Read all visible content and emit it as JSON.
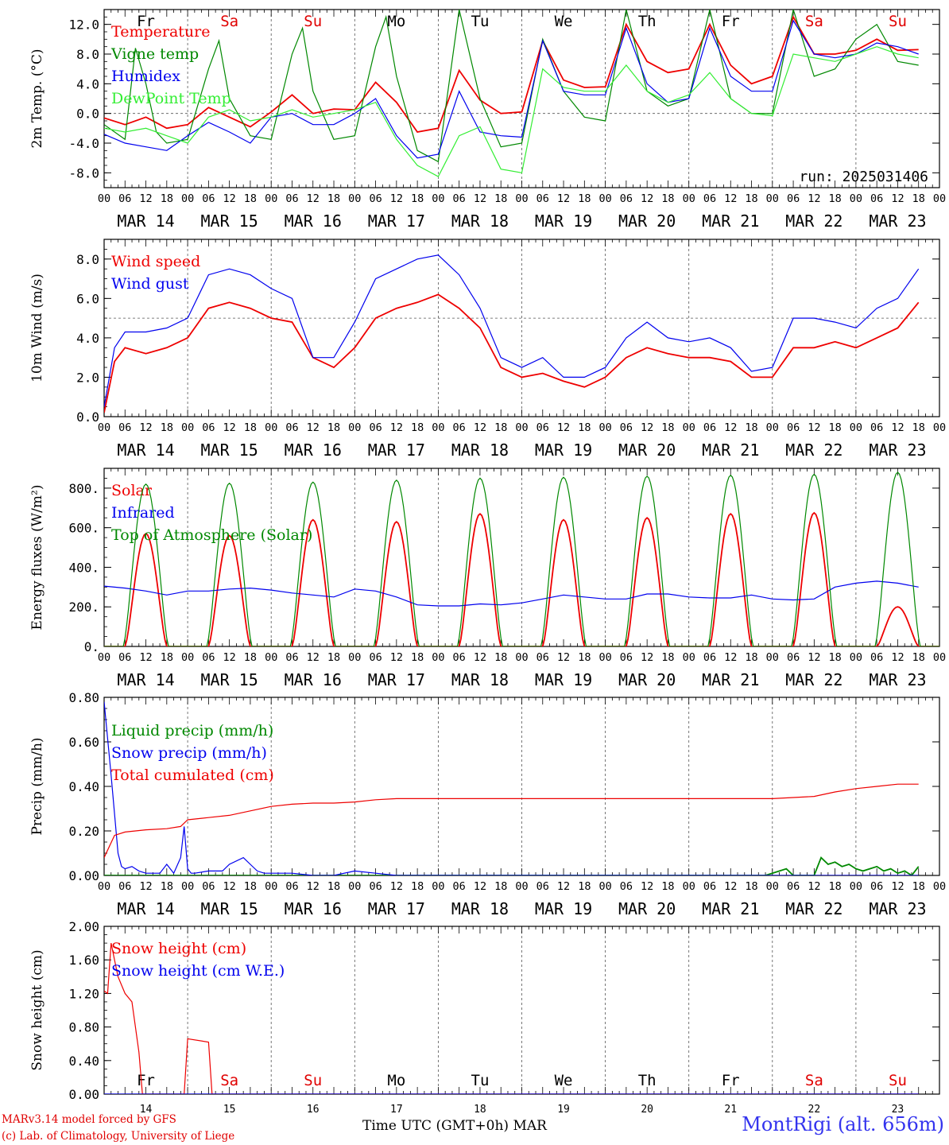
{
  "run_label": "run: 2025031406",
  "station": "MontRigi (alt. 656m)",
  "model_credit": "MARv3.14 model forced by GFS",
  "lab_credit": "(c) Lab. of Climatology, University of Liege",
  "x_axis_label": "Time UTC (GMT+0h) MAR",
  "hour_ticks": [
    "00",
    "06",
    "12",
    "18"
  ],
  "dates": [
    "MAR 14",
    "MAR 15",
    "MAR 16",
    "MAR 17",
    "MAR 18",
    "MAR 19",
    "MAR 20",
    "MAR 21",
    "MAR 22",
    "MAR 23"
  ],
  "date_numbers": [
    "14",
    "15",
    "16",
    "17",
    "18",
    "19",
    "20",
    "21",
    "22",
    "23"
  ],
  "weekdays": [
    "Fr",
    "Sa",
    "Su",
    "Mo",
    "Tu",
    "We",
    "Th",
    "Fr",
    "Sa",
    "Su"
  ],
  "weekday_colors": [
    "#000000",
    "#e00000",
    "#e00000",
    "#000000",
    "#000000",
    "#000000",
    "#000000",
    "#000000",
    "#e00000",
    "#e00000"
  ],
  "colors": {
    "red": "#ee0000",
    "green": "#008800",
    "blue": "#0000ee",
    "lightgreen": "#33ee33",
    "grid": "#555555"
  },
  "chart_data": [
    {
      "type": "line",
      "ylabel": "2m Temp. (°C)",
      "ylim": [
        -10,
        14
      ],
      "yticks": [
        -8,
        -4,
        0,
        4,
        8,
        12
      ],
      "ytick_labels": [
        "-8.0",
        "-4.0",
        "0.0",
        "4.0",
        "8.0",
        "12.0"
      ],
      "x_unit": "hours since 00 UTC MAR 14",
      "series": [
        {
          "name": "Temperature",
          "color": "red",
          "x": [
            0,
            6,
            12,
            18,
            24,
            30,
            36,
            42,
            48,
            54,
            60,
            66,
            72,
            78,
            84,
            90,
            96,
            102,
            108,
            114,
            120,
            126,
            132,
            138,
            144,
            150,
            156,
            162,
            168,
            174,
            180,
            186,
            192,
            198,
            204,
            210,
            216,
            222,
            228,
            234
          ],
          "values": [
            -0.6,
            -1.5,
            -0.5,
            -2.0,
            -1.5,
            0.8,
            -0.5,
            -1.8,
            0.2,
            2.5,
            0.0,
            0.6,
            0.5,
            4.2,
            1.5,
            -2.5,
            -2.0,
            5.8,
            1.8,
            0.0,
            0.2,
            9.8,
            4.5,
            3.5,
            3.6,
            12.0,
            7.0,
            5.5,
            6.0,
            12.0,
            6.5,
            4.0,
            5.0,
            13.0,
            8.0,
            8.0,
            8.5,
            10.0,
            8.5,
            8.6
          ]
        },
        {
          "name": "Vigne temp",
          "color": "green",
          "x": [
            0,
            6,
            9,
            12,
            15,
            18,
            24,
            30,
            33,
            36,
            42,
            48,
            54,
            57,
            60,
            66,
            72,
            78,
            81,
            84,
            90,
            96,
            102,
            108,
            114,
            120,
            126,
            132,
            138,
            144,
            150,
            156,
            162,
            168,
            174,
            180,
            186,
            192,
            198,
            204,
            210,
            216,
            222,
            228,
            234
          ],
          "values": [
            -1.5,
            -3.5,
            8.8,
            4.0,
            -2.5,
            -4.0,
            -3.5,
            6.0,
            9.8,
            2.0,
            -3.0,
            -3.5,
            8.0,
            11.5,
            3.0,
            -3.5,
            -3.0,
            9.0,
            13.0,
            5.0,
            -5.0,
            -6.5,
            14.0,
            2.0,
            -4.5,
            -4.0,
            10.0,
            3.0,
            -0.5,
            -1.0,
            14.0,
            3.0,
            1.0,
            2.0,
            14.0,
            2.0,
            0.0,
            0.0,
            14.0,
            5.0,
            6.0,
            10.0,
            12.0,
            7.0,
            6.5
          ]
        },
        {
          "name": "Humidex",
          "color": "blue",
          "x": [
            0,
            6,
            12,
            18,
            24,
            30,
            36,
            42,
            48,
            54,
            60,
            66,
            72,
            78,
            84,
            90,
            96,
            102,
            108,
            114,
            120,
            126,
            132,
            138,
            144,
            150,
            156,
            162,
            168,
            174,
            180,
            186,
            192,
            198,
            204,
            210,
            216,
            222,
            228,
            234
          ],
          "values": [
            -2.8,
            -4.0,
            -4.5,
            -5.0,
            -3.0,
            -1.2,
            -2.5,
            -4.0,
            -0.5,
            0.0,
            -1.5,
            -1.5,
            0.0,
            2.0,
            -3.0,
            -6.0,
            -5.5,
            3.0,
            -2.5,
            -3.0,
            -3.2,
            9.8,
            3.0,
            2.5,
            2.5,
            11.5,
            4.0,
            1.5,
            2.0,
            11.5,
            5.0,
            3.0,
            3.0,
            12.5,
            8.0,
            7.5,
            8.0,
            9.5,
            9.0,
            8.0
          ]
        },
        {
          "name": "DewPoint Temp",
          "color": "lightgreen",
          "x": [
            0,
            6,
            12,
            18,
            24,
            30,
            36,
            42,
            48,
            54,
            60,
            66,
            72,
            78,
            84,
            90,
            96,
            102,
            108,
            114,
            120,
            126,
            132,
            138,
            144,
            150,
            156,
            162,
            168,
            174,
            180,
            186,
            192,
            198,
            204,
            210,
            216,
            222,
            228,
            234
          ],
          "values": [
            -2.0,
            -2.5,
            -2.0,
            -3.0,
            -4.0,
            -0.5,
            0.5,
            -1.0,
            -0.5,
            0.5,
            -0.5,
            0.0,
            0.5,
            1.5,
            -3.5,
            -7.0,
            -8.5,
            -3.0,
            -1.8,
            -7.5,
            -8.0,
            6.0,
            3.5,
            3.0,
            3.0,
            6.5,
            3.0,
            1.5,
            2.5,
            5.5,
            2.0,
            0.0,
            -0.3,
            8.0,
            7.5,
            7.0,
            8.0,
            9.0,
            8.0,
            7.5
          ]
        }
      ],
      "hline": 0,
      "legend_position": "left"
    },
    {
      "type": "line",
      "ylabel": "10m Wind (m/s)",
      "ylim": [
        0,
        9
      ],
      "yticks": [
        0,
        2,
        4,
        6,
        8
      ],
      "ytick_labels": [
        "0.0",
        "2.0",
        "4.0",
        "6.0",
        "8.0"
      ],
      "series": [
        {
          "name": "Wind speed",
          "color": "red",
          "x": [
            0,
            3,
            6,
            12,
            18,
            24,
            30,
            36,
            42,
            48,
            54,
            60,
            66,
            72,
            78,
            84,
            90,
            96,
            102,
            108,
            114,
            120,
            126,
            132,
            138,
            144,
            150,
            156,
            162,
            168,
            174,
            180,
            186,
            192,
            198,
            204,
            210,
            216,
            222,
            228,
            234
          ],
          "values": [
            0.2,
            2.8,
            3.5,
            3.2,
            3.5,
            4.0,
            5.5,
            5.8,
            5.5,
            5.0,
            4.8,
            3.0,
            2.5,
            3.5,
            5.0,
            5.5,
            5.8,
            6.2,
            5.5,
            4.5,
            2.5,
            2.0,
            2.2,
            1.8,
            1.5,
            2.0,
            3.0,
            3.5,
            3.2,
            3.0,
            3.0,
            2.8,
            2.0,
            2.0,
            3.5,
            3.5,
            3.8,
            3.5,
            4.0,
            4.5,
            5.8
          ]
        },
        {
          "name": "Wind gust",
          "color": "blue",
          "x": [
            0,
            3,
            6,
            12,
            18,
            24,
            30,
            36,
            42,
            48,
            54,
            60,
            66,
            72,
            78,
            84,
            90,
            96,
            102,
            108,
            114,
            120,
            126,
            132,
            138,
            144,
            150,
            156,
            162,
            168,
            174,
            180,
            186,
            192,
            198,
            204,
            210,
            216,
            222,
            228,
            234
          ],
          "values": [
            0.5,
            3.5,
            4.3,
            4.3,
            4.5,
            5.0,
            7.2,
            7.5,
            7.2,
            6.5,
            6.0,
            3.0,
            3.0,
            4.8,
            7.0,
            7.5,
            8.0,
            8.2,
            7.2,
            5.5,
            3.0,
            2.5,
            3.0,
            2.0,
            2.0,
            2.5,
            4.0,
            4.8,
            4.0,
            3.8,
            4.0,
            3.5,
            2.3,
            2.5,
            5.0,
            5.0,
            4.8,
            4.5,
            5.5,
            6.0,
            7.5
          ]
        }
      ],
      "hline": 5,
      "legend_position": "left"
    },
    {
      "type": "line",
      "ylabel": "Energy fluxes (W/m²)",
      "ylim": [
        0,
        900
      ],
      "yticks": [
        0,
        200,
        400,
        600,
        800
      ],
      "ytick_labels": [
        "0.",
        "200.",
        "400.",
        "600.",
        "800."
      ],
      "series": [
        {
          "name": "Solar",
          "color": "red",
          "peaks": [
            570,
            560,
            640,
            630,
            670,
            640,
            650,
            670,
            675,
            200
          ],
          "peak_hour": 12,
          "day_start": 6,
          "day_end": 18
        },
        {
          "name": "Infrared",
          "color": "blue",
          "x": [
            0,
            6,
            12,
            18,
            24,
            30,
            36,
            42,
            48,
            54,
            60,
            66,
            72,
            78,
            84,
            90,
            96,
            102,
            108,
            114,
            120,
            126,
            132,
            138,
            144,
            150,
            156,
            162,
            168,
            174,
            180,
            186,
            192,
            198,
            204,
            210,
            216,
            222,
            228,
            234
          ],
          "values": [
            305,
            295,
            280,
            260,
            280,
            280,
            290,
            295,
            285,
            270,
            260,
            250,
            290,
            280,
            250,
            210,
            205,
            205,
            215,
            210,
            220,
            240,
            260,
            250,
            240,
            240,
            265,
            265,
            250,
            245,
            245,
            260,
            240,
            235,
            240,
            300,
            320,
            330,
            320,
            300
          ]
        },
        {
          "name": "Top of Atmosphere (Solar)",
          "color": "green",
          "peaks": [
            820,
            825,
            830,
            840,
            850,
            855,
            860,
            865,
            870,
            880
          ],
          "peak_hour": 12,
          "day_start": 5.5,
          "day_end": 18.5
        }
      ],
      "legend_position": "left"
    },
    {
      "type": "line",
      "ylabel": "Precip (mm/h)",
      "ylim": [
        0,
        0.8
      ],
      "yticks": [
        0,
        0.2,
        0.4,
        0.6,
        0.8
      ],
      "ytick_labels": [
        "0.00",
        "0.20",
        "0.40",
        "0.60",
        "0.80"
      ],
      "series": [
        {
          "name": "Liquid precip (mm/h)",
          "color": "green",
          "x": [
            0,
            190,
            196,
            198,
            200,
            202,
            204,
            206,
            208,
            210,
            212,
            214,
            216,
            218,
            220,
            222,
            224,
            226,
            228,
            230,
            232,
            234
          ],
          "values": [
            0,
            0,
            0.03,
            0,
            0,
            0,
            0,
            0.08,
            0.05,
            0.06,
            0.04,
            0.05,
            0.03,
            0.02,
            0.03,
            0.04,
            0.02,
            0.03,
            0.01,
            0.02,
            0,
            0.04
          ]
        },
        {
          "name": "Snow precip (mm/h)",
          "color": "blue",
          "x": [
            0,
            2,
            4,
            5,
            6,
            8,
            10,
            12,
            14,
            16,
            18,
            20,
            22,
            23,
            24,
            25,
            26,
            30,
            34,
            36,
            40,
            42,
            44,
            46,
            48,
            54,
            60,
            66,
            72,
            78,
            84,
            234
          ],
          "values": [
            0.78,
            0.45,
            0.1,
            0.04,
            0.03,
            0.04,
            0.02,
            0.01,
            0.01,
            0.01,
            0.05,
            0.01,
            0.08,
            0.22,
            0.03,
            0.01,
            0.01,
            0.02,
            0.02,
            0.05,
            0.08,
            0.05,
            0.02,
            0.01,
            0.01,
            0.01,
            0,
            0,
            0.02,
            0.01,
            0,
            0
          ]
        },
        {
          "name": "Total cumulated (cm)",
          "color": "red",
          "x": [
            0,
            3,
            6,
            12,
            18,
            22,
            24,
            30,
            36,
            42,
            48,
            54,
            60,
            66,
            72,
            78,
            84,
            90,
            96,
            120,
            144,
            168,
            192,
            198,
            204,
            210,
            216,
            222,
            228,
            234
          ],
          "values": [
            0.08,
            0.18,
            0.195,
            0.205,
            0.21,
            0.22,
            0.25,
            0.26,
            0.27,
            0.29,
            0.31,
            0.32,
            0.325,
            0.325,
            0.33,
            0.34,
            0.345,
            0.345,
            0.345,
            0.345,
            0.345,
            0.345,
            0.345,
            0.35,
            0.355,
            0.375,
            0.39,
            0.4,
            0.41,
            0.41
          ]
        }
      ],
      "legend_position": "left"
    },
    {
      "type": "line",
      "ylabel": "Snow height (cm)",
      "ylim": [
        0,
        2
      ],
      "yticks": [
        0,
        0.4,
        0.8,
        1.2,
        1.6,
        2.0
      ],
      "ytick_labels": [
        "0.00",
        "0.40",
        "0.80",
        "1.20",
        "1.60",
        "2.00"
      ],
      "series": [
        {
          "name": "Snow height (cm)",
          "color": "red",
          "x": [
            0,
            1,
            2,
            3,
            4,
            6,
            8,
            10,
            11,
            12,
            16,
            20,
            22,
            23,
            24,
            30,
            31,
            32,
            234
          ],
          "values": [
            1.23,
            1.2,
            1.8,
            1.6,
            1.4,
            1.2,
            1.1,
            0.5,
            0,
            0,
            0,
            0,
            0,
            0,
            0.66,
            0.62,
            0,
            0,
            0
          ]
        },
        {
          "name": "Snow height (cm W.E.)",
          "color": "blue",
          "x": [
            0,
            234
          ],
          "values": [
            0,
            0
          ]
        }
      ],
      "legend_position": "left"
    }
  ]
}
